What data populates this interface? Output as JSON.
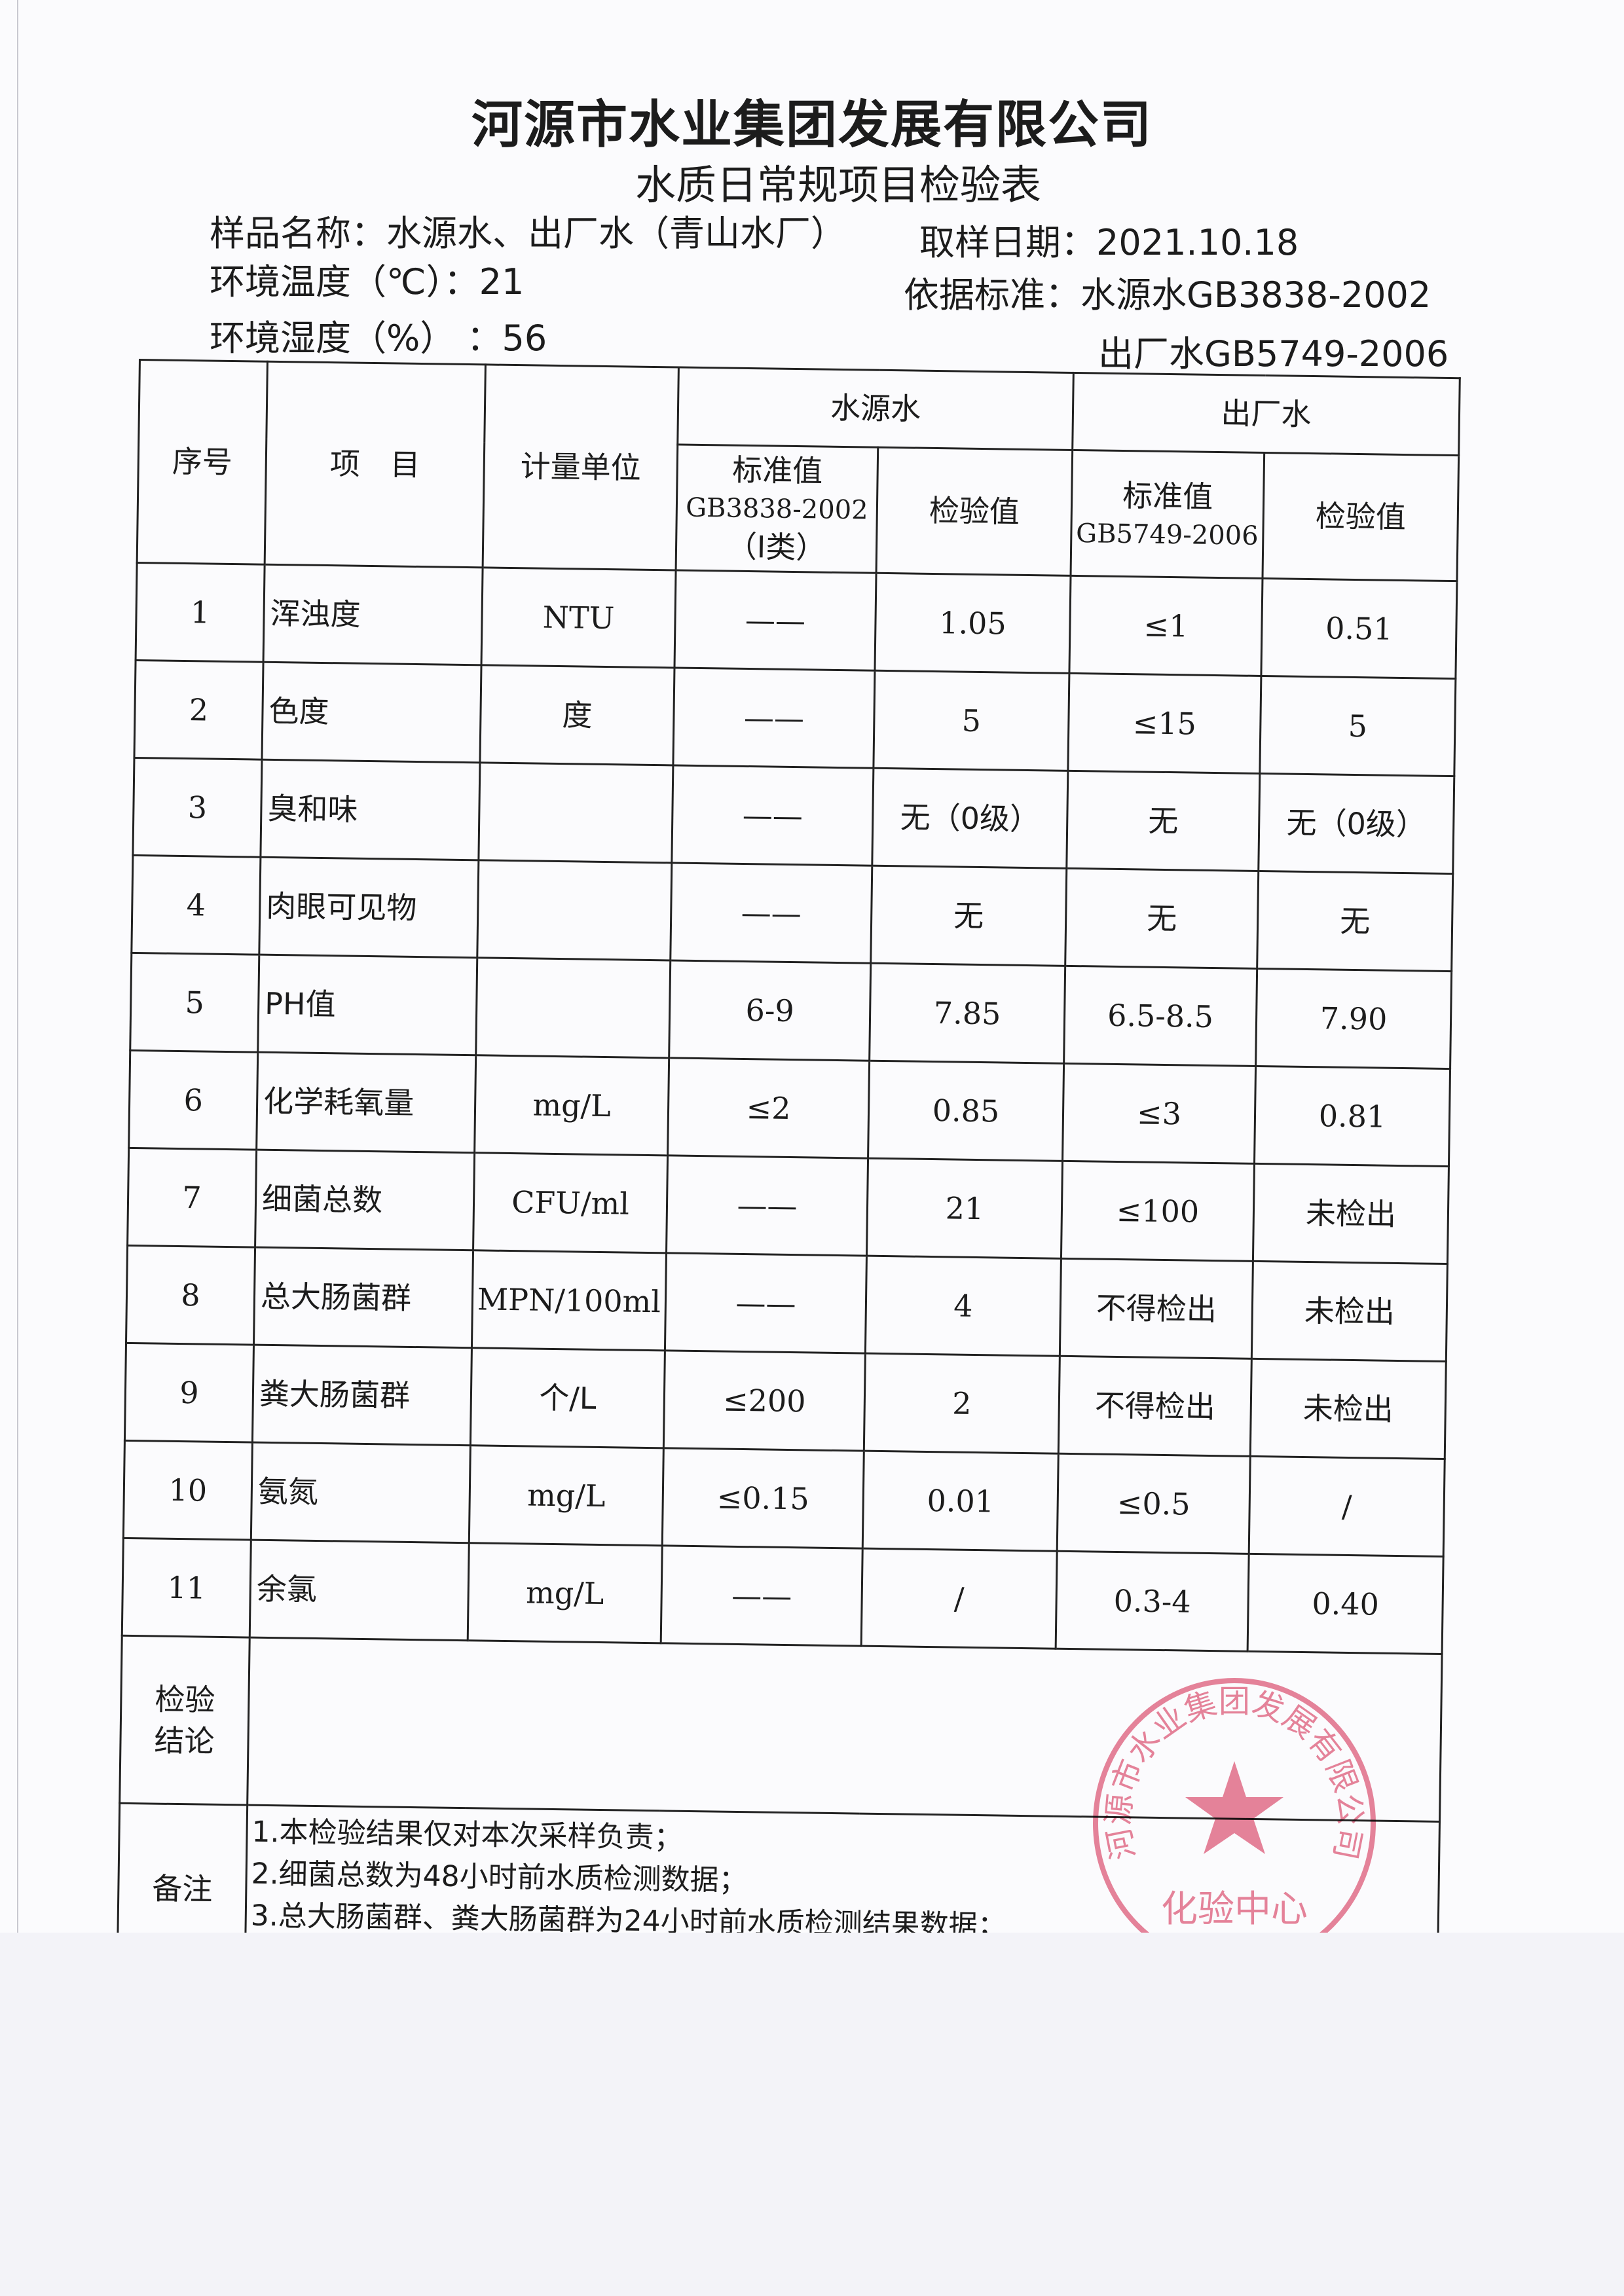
{
  "header": {
    "company": "河源市水业集团发展有限公司",
    "form_title": "水质日常规项目检验表",
    "sample_name": "样品名称：水源水、出厂水（青山水厂）",
    "sample_date": "取样日期：2021.10.18",
    "temperature": "环境温度（℃）：21",
    "humidity": "环境湿度（%）  ：56",
    "standard_source": "依据标准：水源水GB3838-2002",
    "standard_output": "出厂水GB5749-2006"
  },
  "table": {
    "col_no": "序号",
    "col_item": "项　目",
    "col_unit": "计量单位",
    "group_source": "水源水",
    "group_output": "出厂水",
    "std_label": "标准值",
    "std_source_code": "GB3838-2002",
    "std_source_class": "（Ⅰ类）",
    "std_output_code": "GB5749-2006",
    "measured_label": "检验值",
    "rows": [
      [
        "1",
        "浑浊度",
        "NTU",
        "——",
        "1.05",
        "≤1",
        "0.51"
      ],
      [
        "2",
        "色度",
        "度",
        "——",
        "5",
        "≤15",
        "5"
      ],
      [
        "3",
        "臭和味",
        "",
        "——",
        "无（0级）",
        "无",
        "无（0级）"
      ],
      [
        "4",
        "肉眼可见物",
        "",
        "——",
        "无",
        "无",
        "无"
      ],
      [
        "5",
        "PH值",
        "",
        "6-9",
        "7.85",
        "6.5-8.5",
        "7.90"
      ],
      [
        "6",
        "化学耗氧量",
        "mg/L",
        "≤2",
        "0.85",
        "≤3",
        "0.81"
      ],
      [
        "7",
        "细菌总数",
        "CFU/ml",
        "——",
        "21",
        "≤100",
        "未检出"
      ],
      [
        "8",
        "总大肠菌群",
        "MPN/100ml",
        "——",
        "4",
        "不得检出",
        "未检出"
      ],
      [
        "9",
        "粪大肠菌群",
        "个/L",
        "≤200",
        "2",
        "不得检出",
        "未检出"
      ],
      [
        "10",
        "氨氮",
        "mg/L",
        "≤0.15",
        "0.01",
        "≤0.5",
        "/"
      ],
      [
        "11",
        "余氯",
        "mg/L",
        "——",
        "/",
        "0.3-4",
        "0.40"
      ]
    ],
    "conclusion_label_1": "检验",
    "conclusion_label_2": "结论",
    "conclusion_value": "",
    "notes_label": "备注",
    "notes": [
      "1.本检验结果仅对本次采样负责；",
      "2.细菌总数为48小时前水质检测数据；",
      "3.总大肠菌群、粪大肠菌群为24小时前水质检测结果数据；"
    ]
  },
  "stamp": {
    "ring_text": "河源市水业集团发展有限公司",
    "center_text": "化验中心",
    "color": "#e05a78"
  }
}
